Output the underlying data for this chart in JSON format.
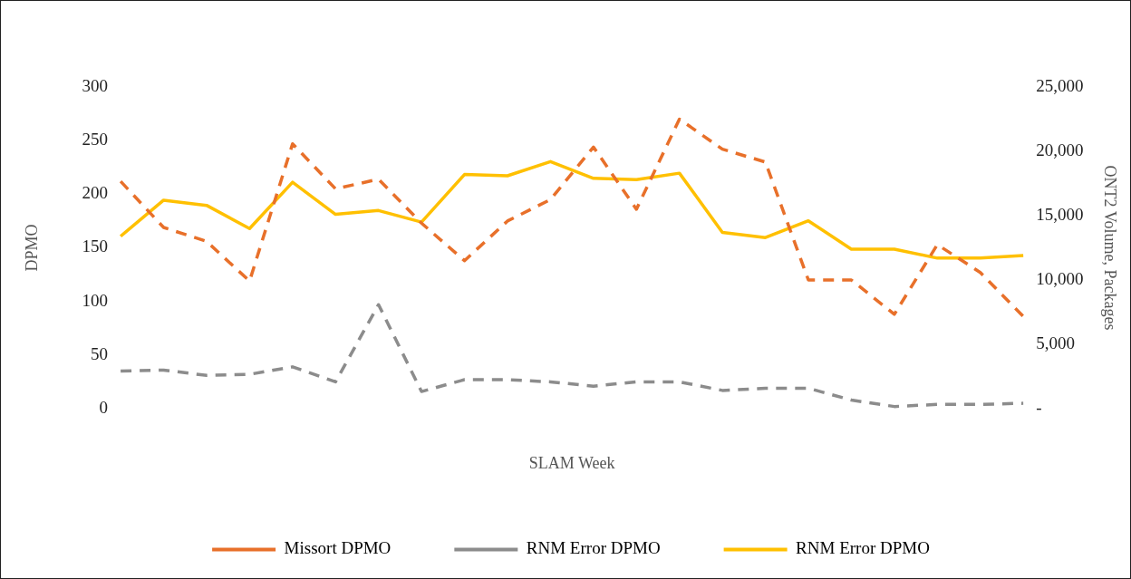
{
  "chart_data": {
    "type": "line",
    "xlabel": "SLAM Week",
    "ylabel": "DPMO",
    "y2label": "ONT2 Volume, Packages",
    "categories": [
      null,
      null,
      null,
      null,
      null,
      null,
      null,
      null,
      null,
      null,
      null,
      null,
      null,
      null,
      null,
      null,
      null,
      null,
      null,
      null,
      null,
      null
    ],
    "series": [
      {
        "name": "Missort DPMO",
        "color": "#e8702a",
        "line_style": "dashed",
        "values": [
          212,
          169,
          156,
          119,
          247,
          205,
          214,
          173,
          138,
          175,
          195,
          244,
          186,
          270,
          242,
          230,
          120,
          120,
          88,
          153,
          127,
          86
        ]
      },
      {
        "name": "RNM Error DPMO",
        "color": "#8c8c8c",
        "line_style": "dashed",
        "values": [
          35,
          36,
          31,
          32,
          39,
          25,
          97,
          16,
          27,
          27,
          25,
          21,
          25,
          25,
          17,
          19,
          19,
          8,
          2,
          4,
          4,
          5
        ]
      },
      {
        "name": "RNM Error DPMO",
        "color": "#ffc000",
        "line_style": "solid",
        "axis": "y2",
        "values": [
          13400,
          16200,
          15800,
          14000,
          17600,
          15100,
          15400,
          14500,
          18200,
          18100,
          19200,
          17900,
          17800,
          18300,
          13700,
          13300,
          14600,
          12400,
          12400,
          11700,
          11700,
          11900
        ]
      }
    ],
    "ylim": [
      0,
      300
    ],
    "yticks": [
      0,
      50,
      100,
      150,
      200,
      250,
      300
    ],
    "y2lim": [
      0,
      25000
    ],
    "y2ticks": [
      {
        "value": 0,
        "label": "-"
      },
      {
        "value": 5000,
        "label": "5,000"
      },
      {
        "value": 10000,
        "label": "10,000"
      },
      {
        "value": 15000,
        "label": "15,000"
      },
      {
        "value": 20000,
        "label": "20,000"
      },
      {
        "value": 25000,
        "label": "25,000"
      }
    ],
    "grid": false,
    "legend": "bottom",
    "marker": "none"
  }
}
